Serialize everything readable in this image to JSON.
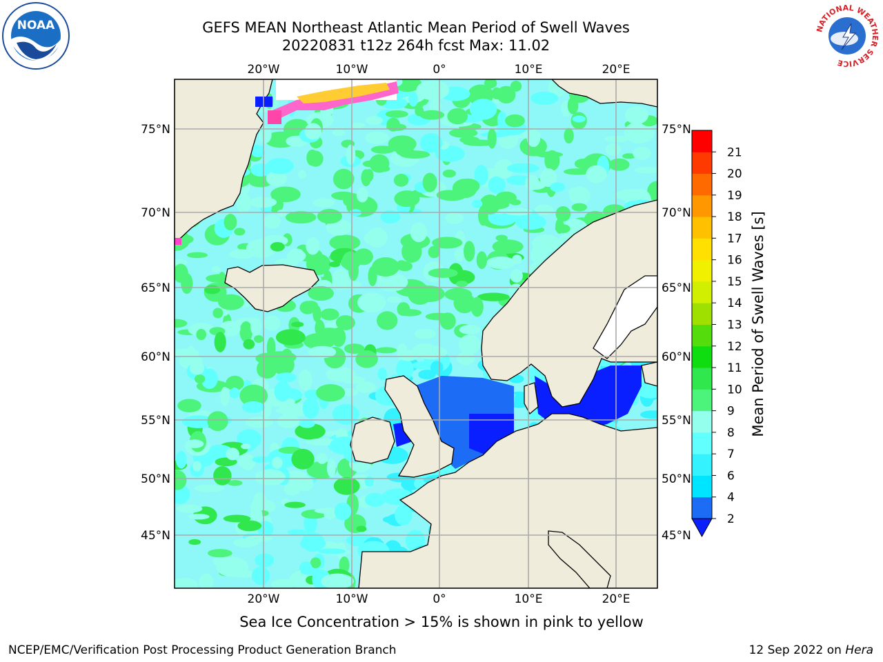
{
  "title": {
    "line1": "GEFS MEAN Northeast Atlantic Mean Period of Swell Waves",
    "line2": "20220831 t12z 264h fcst   Max: 11.02"
  },
  "axes": {
    "lon_labels": [
      "20°W",
      "10°W",
      "0°",
      "10°E",
      "20°E"
    ],
    "lat_labels": [
      "75°N",
      "70°N",
      "65°N",
      "60°N",
      "55°N",
      "50°N",
      "45°N"
    ]
  },
  "colorbar": {
    "label": "Mean Period of Swell Waves [s]",
    "ticks": [
      "2",
      "4",
      "6",
      "7",
      "8",
      "9",
      "10",
      "11",
      "12",
      "13",
      "14",
      "15",
      "16",
      "17",
      "18",
      "19",
      "20",
      "21"
    ],
    "colors": [
      "#1c6cf5",
      "#00e5ff",
      "#35f2ff",
      "#62ffff",
      "#95ffee",
      "#4cf47c",
      "#30e84d",
      "#10dd10",
      "#55dc0c",
      "#a0e000",
      "#d1ef00",
      "#f0f000",
      "#ffe000",
      "#ffc000",
      "#ff9800",
      "#ff6a00",
      "#ff3a00",
      "#ff0000"
    ],
    "under_color": "#0a1fff"
  },
  "note": "Sea Ice Concentration > 15% is shown in pink to yellow",
  "footer": {
    "left": "NCEP/EMC/Verification Post Processing Product Generation Branch",
    "right_date": "12 Sep 2022 on ",
    "right_machine": "Hera"
  },
  "logos": {
    "noaa": "NOAA",
    "nws_ring": "NATIONAL WEATHER SERVICE"
  },
  "colors": {
    "land": "#efecdc",
    "ocean_base": "#8ef7f7",
    "grid": "#aaaaaa"
  }
}
